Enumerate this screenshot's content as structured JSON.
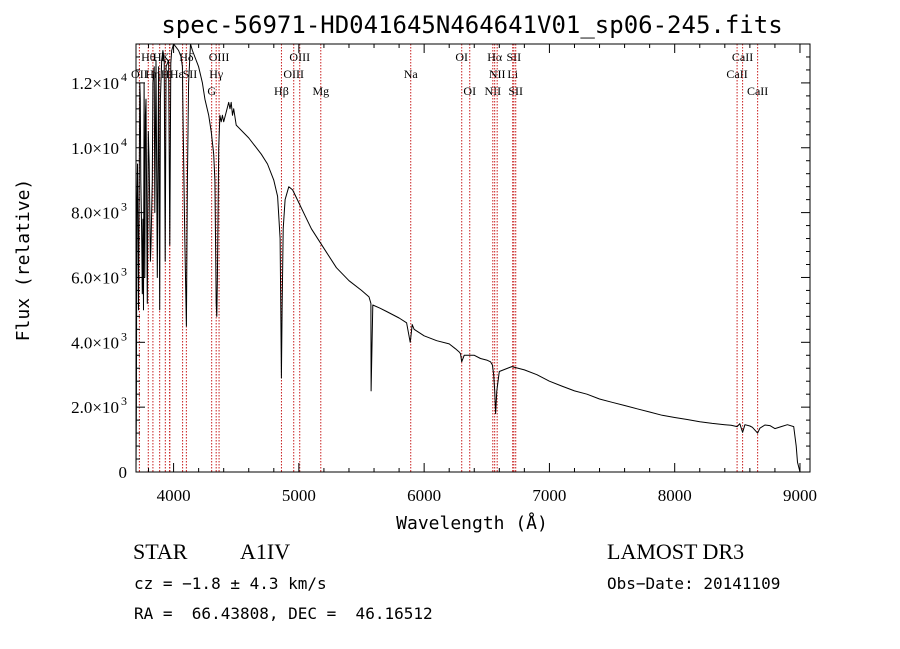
{
  "chart_data": {
    "type": "line",
    "title": "spec-56971-HD041645N464641V01_sp06-245.fits",
    "xlabel": "Wavelength (Å)",
    "ylabel": "Flux (relative)",
    "xlim": [
      3700,
      9080
    ],
    "ylim": [
      0,
      13200
    ],
    "x_ticks": [
      {
        "value": 4000,
        "label": "4000"
      },
      {
        "value": 5000,
        "label": "5000"
      },
      {
        "value": 6000,
        "label": "6000"
      },
      {
        "value": 7000,
        "label": "7000"
      },
      {
        "value": 8000,
        "label": "8000"
      },
      {
        "value": 9000,
        "label": "9000"
      }
    ],
    "y_ticks": [
      {
        "value": 0,
        "label": "0"
      },
      {
        "value": 2000,
        "label": "2.0×10",
        "exp": "3"
      },
      {
        "value": 4000,
        "label": "4.0×10",
        "exp": "3"
      },
      {
        "value": 6000,
        "label": "6.0×10",
        "exp": "3"
      },
      {
        "value": 8000,
        "label": "8.0×10",
        "exp": "3"
      },
      {
        "value": 10000,
        "label": "1.0×10",
        "exp": "4"
      },
      {
        "value": 12000,
        "label": "1.2×10",
        "exp": "4"
      }
    ],
    "series": [
      {
        "name": "spectrum",
        "x": [
          3700,
          3703,
          3706,
          3712,
          3720,
          3730,
          3734,
          3738,
          3745,
          3750,
          3755,
          3760,
          3765,
          3770,
          3775,
          3780,
          3790,
          3798,
          3805,
          3815,
          3820,
          3830,
          3835,
          3845,
          3850,
          3860,
          3870,
          3880,
          3889,
          3895,
          3905,
          3915,
          3925,
          3933,
          3940,
          3950,
          3960,
          3970,
          3978,
          3985,
          4000,
          4020,
          4040,
          4060,
          4070,
          4075,
          4090,
          4102,
          4110,
          4120,
          4135,
          4150,
          4170,
          4200,
          4230,
          4250,
          4280,
          4300,
          4320,
          4330,
          4340,
          4345,
          4350,
          4360,
          4370,
          4380,
          4390,
          4400,
          4420,
          4440,
          4450,
          4460,
          4470,
          4480,
          4500,
          4600,
          4700,
          4750,
          4800,
          4830,
          4850,
          4856,
          4861,
          4866,
          4875,
          4890,
          4920,
          4950,
          5000,
          5050,
          5100,
          5200,
          5300,
          5400,
          5500,
          5560,
          5575,
          5577,
          5590,
          5650,
          5700,
          5800,
          5860,
          5889,
          5895,
          5905,
          5920,
          6000,
          6100,
          6200,
          6250,
          6280,
          6290,
          6300,
          6320,
          6400,
          6450,
          6500,
          6530,
          6545,
          6555,
          6563,
          6570,
          6580,
          6600,
          6700,
          6800,
          6900,
          7000,
          7100,
          7200,
          7300,
          7400,
          7500,
          7600,
          7700,
          7800,
          7900,
          8000,
          8100,
          8200,
          8300,
          8400,
          8450,
          8498,
          8520,
          8542,
          8560,
          8600,
          8620,
          8662,
          8680,
          8720,
          8760,
          8800,
          8850,
          8900,
          8950,
          8970,
          8980,
          9000
        ],
        "y": [
          0,
          2000,
          8000,
          9500,
          5000,
          12000,
          11500,
          9000,
          7500,
          5500,
          7800,
          5000,
          12000,
          6000,
          11000,
          11500,
          5200,
          10500,
          9500,
          6500,
          7000,
          9000,
          12000,
          12500,
          8000,
          12700,
          6000,
          12500,
          5000,
          11500,
          12700,
          13000,
          12700,
          6500,
          12500,
          12600,
          12700,
          7000,
          12600,
          13000,
          13200,
          13100,
          13000,
          12800,
          12500,
          11000,
          7000,
          4500,
          9000,
          12000,
          13200,
          13000,
          12800,
          12500,
          12000,
          11500,
          11000,
          10500,
          9800,
          9000,
          5200,
          4800,
          6000,
          10000,
          11000,
          10800,
          11000,
          10800,
          11100,
          11400,
          11200,
          11400,
          11000,
          11200,
          10700,
          10300,
          9800,
          9500,
          9000,
          8500,
          7200,
          5000,
          2900,
          5000,
          7500,
          8400,
          8800,
          8700,
          8300,
          7900,
          7500,
          6900,
          6300,
          5900,
          5600,
          5400,
          5200,
          2500,
          5150,
          5050,
          4950,
          4750,
          4600,
          4000,
          4200,
          4550,
          4400,
          4200,
          4050,
          3950,
          3800,
          3700,
          3650,
          3400,
          3600,
          3600,
          3500,
          3450,
          3400,
          3300,
          3000,
          2500,
          1800,
          2500,
          3100,
          3250,
          3150,
          3000,
          2800,
          2650,
          2500,
          2400,
          2250,
          2150,
          2050,
          1950,
          1850,
          1750,
          1680,
          1620,
          1550,
          1500,
          1460,
          1440,
          1400,
          1490,
          1220,
          1460,
          1420,
          1380,
          1200,
          1350,
          1450,
          1430,
          1340,
          1400,
          1460,
          1400,
          800,
          300,
          0
        ]
      }
    ],
    "lines": [
      {
        "name": "OII",
        "x": 3727,
        "row": 2,
        "align": "center"
      },
      {
        "name": "Hθ",
        "x": 3798,
        "row": 1,
        "align": "center"
      },
      {
        "name": "Hη",
        "x": 3835,
        "row": 2,
        "align": "center"
      },
      {
        "name": "Hζ",
        "x": 3889,
        "row": 1,
        "align": "center"
      },
      {
        "name": "K",
        "x": 3934,
        "row": 1,
        "align": "center"
      },
      {
        "name": "H",
        "x": 3968,
        "row": 2,
        "align": "left"
      },
      {
        "name": "Hε",
        "x": 3970,
        "row": 2,
        "align": "right"
      },
      {
        "name": "SII",
        "x": 4072,
        "row": 2,
        "align": "right"
      },
      {
        "name": "Hδ",
        "x": 4102,
        "row": 1,
        "align": "center"
      },
      {
        "name": "G",
        "x": 4304,
        "row": 3,
        "align": "center"
      },
      {
        "name": "Hγ",
        "x": 4340,
        "row": 2,
        "align": "center"
      },
      {
        "name": "OIII",
        "x": 4363,
        "row": 1,
        "align": "center"
      },
      {
        "name": "Hβ",
        "x": 4861,
        "row": 3,
        "align": "center"
      },
      {
        "name": "OIII",
        "x": 4959,
        "row": 2,
        "align": "center"
      },
      {
        "name": "OIII",
        "x": 5007,
        "row": 1,
        "align": "center"
      },
      {
        "name": "Mg",
        "x": 5175,
        "row": 3,
        "align": "center"
      },
      {
        "name": "Na",
        "x": 5893,
        "row": 2,
        "align": "center"
      },
      {
        "name": "OI",
        "x": 6300,
        "row": 1,
        "align": "center"
      },
      {
        "name": "OI",
        "x": 6364,
        "row": 3,
        "align": "center"
      },
      {
        "name": "NII",
        "x": 6548,
        "row": 3,
        "align": "center"
      },
      {
        "name": "Hα",
        "x": 6563,
        "row": 1,
        "align": "center"
      },
      {
        "name": "NII",
        "x": 6583,
        "row": 2,
        "align": "center"
      },
      {
        "name": "Li",
        "x": 6707,
        "row": 2,
        "align": "center"
      },
      {
        "name": "SII",
        "x": 6716,
        "row": 1,
        "align": "center"
      },
      {
        "name": "SII",
        "x": 6731,
        "row": 3,
        "align": "center"
      },
      {
        "name": "CaII",
        "x": 8498,
        "row": 2,
        "align": "center"
      },
      {
        "name": "CaII",
        "x": 8542,
        "row": 1,
        "align": "center"
      },
      {
        "name": "CaII",
        "x": 8662,
        "row": 3,
        "align": "center"
      }
    ],
    "colors": {
      "spectrum": "#000000",
      "lines": "#c81e1e",
      "axes": "#000000"
    }
  },
  "info": {
    "object_class": "STAR",
    "subclass": "A1IV",
    "survey": "LAMOST DR3",
    "redshift": "cz = −1.8 ± 4.3 km/s",
    "obs_date": "Obs−Date: 20141109",
    "coords": "RA =  66.43808, DEC =  46.16512"
  }
}
